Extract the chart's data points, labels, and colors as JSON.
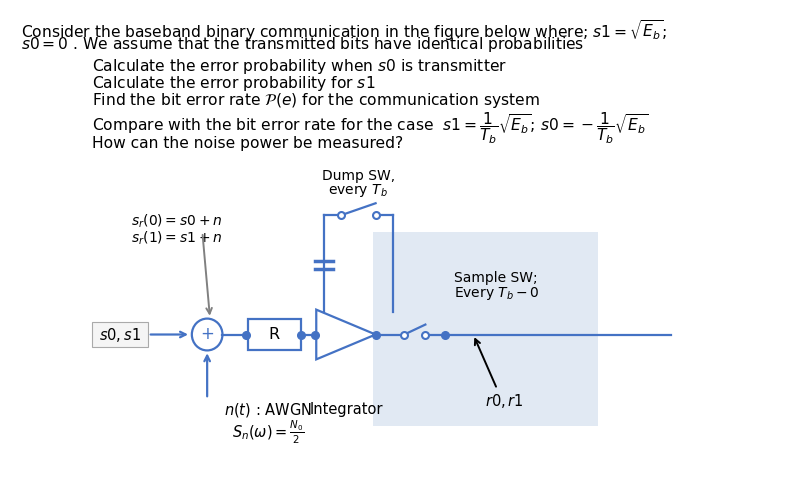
{
  "bg_color": "#ffffff",
  "text_color": "#000000",
  "blue_color": "#4472C4",
  "light_blue_bg": "#dce6f1",
  "gray_arrow": "#808080",
  "figsize": [
    8.12,
    4.95
  ],
  "dpi": 100,
  "title_line1": "Consider the baseband binary communication in the figure below where; $s1 = \\sqrt{E_b}$;",
  "title_line2": "$s0 = 0$ . We assume that the transmitted bits have identical probabilities",
  "bullet1": "Calculate the error probability when $s0$ is transmitter",
  "bullet2": "Calculate the error probability for $s1$",
  "bullet3": "Find the bit error rate $\\mathcal{P}(e)$ for the communication system",
  "bullet4": "Compare with the bit error rate for the case  $s1 = \\dfrac{1}{T_b}\\sqrt{E_b}$; $s0 = -\\dfrac{1}{T_b}\\sqrt{E_b}$",
  "bullet5": "How can the noise power be measured?",
  "sr_line1": "$s_r(0) = s0 + n$",
  "sr_line2": "$s_r(1) = s1 + n$",
  "noise1": "$n(t)$ : AWGN",
  "noise2": "$S_n(\\omega) = ^{N_0}\\!/_{2}$",
  "dump_sw1": "Dump SW,",
  "dump_sw2": "every $T_b$",
  "sample_sw1": "Sample SW;",
  "sample_sw2": "Every $T_b - 0$",
  "integrator_label": "Integrator",
  "r_label": "R",
  "r0r1_label": "$r0, r1$"
}
